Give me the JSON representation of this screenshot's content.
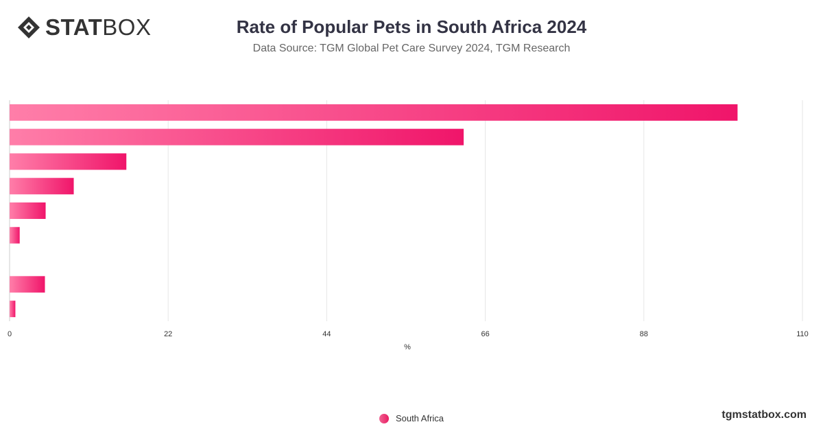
{
  "header": {
    "logo_bold": "STAT",
    "logo_light": "BOX",
    "title": "Rate of Popular Pets in South Africa 2024",
    "subtitle": "Data Source: TGM Global Pet Care Survey 2024, TGM Research"
  },
  "footer": {
    "legend_label": "South Africa",
    "site": "tgmstatbox.com"
  },
  "colors": {
    "bar_start": "#ff7ea9",
    "bar_end": "#f0156a",
    "grid": "#e6e6e6",
    "axis_text": "#333333"
  },
  "chart_data": {
    "type": "bar",
    "orientation": "horizontal",
    "series": [
      {
        "name": "South Africa",
        "values": [
          101,
          63,
          16.2,
          8.9,
          5,
          1.4,
          0,
          4.9,
          0.8
        ]
      }
    ],
    "xlabel": "%",
    "xlim": [
      0,
      110
    ],
    "xticks": [
      0,
      22,
      44,
      66,
      88,
      110
    ],
    "grid": true,
    "legend_position": "bottom-center"
  }
}
